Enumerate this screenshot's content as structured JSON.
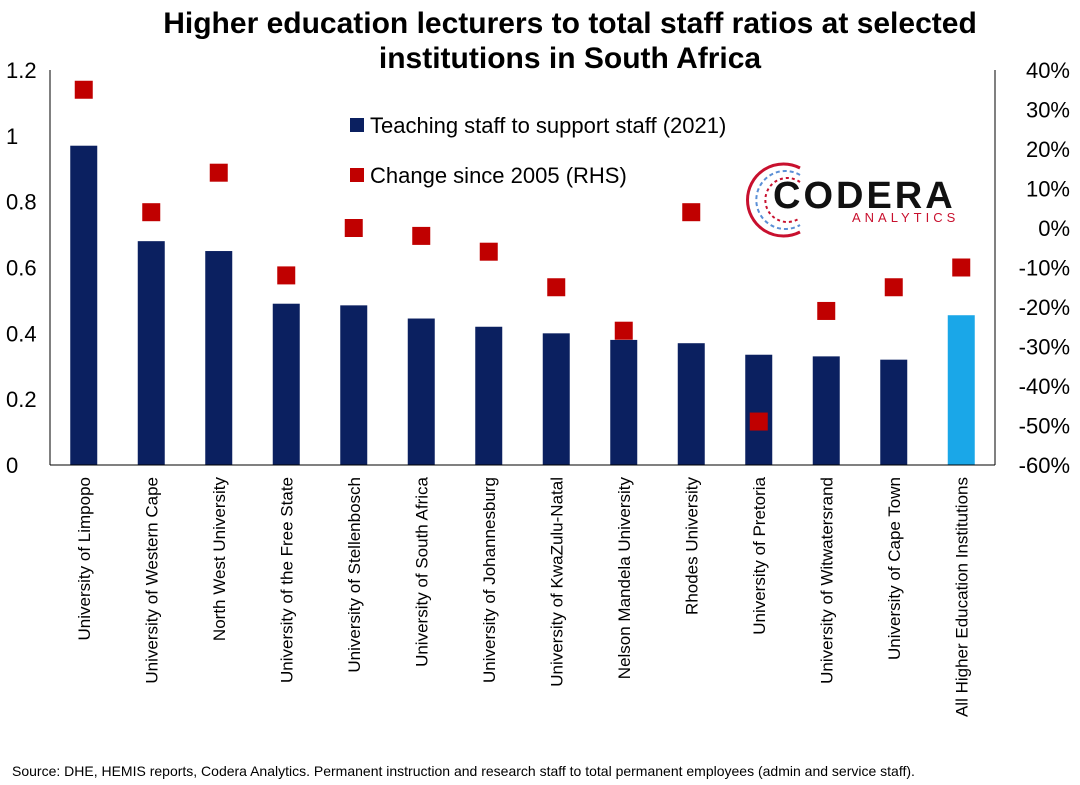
{
  "chart_data": {
    "type": "bar",
    "title_line1": "Higher education lecturers to total staff ratios at selected",
    "title_line2": "institutions in South Africa",
    "categories": [
      "University of Limpopo",
      "University of Western Cape",
      "North West University",
      "University of the Free State",
      "University of Stellenbosch",
      "University of South Africa",
      "University of Johannesburg",
      "University of KwaZulu-Natal",
      "Nelson Mandela University",
      "Rhodes University",
      "University of Pretoria",
      "University of Witwatersrand",
      "University of Cape Town",
      "All Higher Education Institutions"
    ],
    "series": [
      {
        "name": "Teaching staff to support staff (2021)",
        "type": "bar",
        "axis": "left",
        "color": "#0b2060",
        "highlight_color": "#1aa7e8",
        "highlight_index": 13,
        "values": [
          0.97,
          0.68,
          0.65,
          0.49,
          0.485,
          0.445,
          0.42,
          0.4,
          0.38,
          0.37,
          0.335,
          0.33,
          0.32,
          0.455
        ]
      },
      {
        "name": "Change since 2005 (RHS)",
        "type": "scatter",
        "axis": "right",
        "color": "#c00000",
        "values": [
          0.35,
          0.04,
          0.14,
          -0.12,
          0.0,
          -0.02,
          -0.06,
          -0.15,
          -0.26,
          0.04,
          -0.49,
          -0.21,
          -0.15,
          -0.1
        ]
      }
    ],
    "y_left": {
      "min": 0,
      "max": 1.2,
      "ticks": [
        "0",
        "0.2",
        "0.4",
        "0.6",
        "0.8",
        "1",
        "1.2"
      ]
    },
    "y_right": {
      "min": -0.6,
      "max": 0.4,
      "ticks": [
        "-60%",
        "-50%",
        "-40%",
        "-30%",
        "-20%",
        "-10%",
        "0%",
        "10%",
        "20%",
        "30%",
        "40%"
      ]
    },
    "grid": false,
    "legend_position": "top-center"
  },
  "logo": {
    "word": "CODERA",
    "sub": "ANALYTICS"
  },
  "source": "Source: DHE, HEMIS reports, Codera Analytics. Permanent instruction and research staff to total permanent employees (admin and service staff)."
}
